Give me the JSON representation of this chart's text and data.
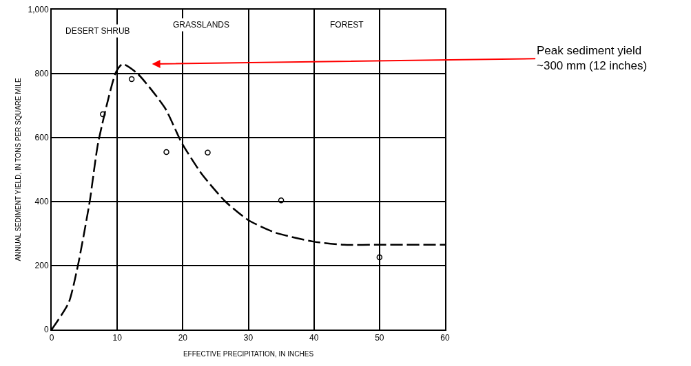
{
  "chart_data": {
    "type": "line",
    "xlabel": "EFFECTIVE PRECIPITATION, IN INCHES",
    "ylabel": "ANNUAL SEDIMENT YIELD, IN TONS PER SQUARE MILE",
    "xlim": [
      0,
      60
    ],
    "xticks": [
      0,
      10,
      20,
      30,
      40,
      50,
      60
    ],
    "ylim": [
      0,
      1000
    ],
    "yticks": [
      0,
      200,
      400,
      600,
      800,
      {
        "value": 1000,
        "label": "1,000"
      }
    ],
    "grid": true,
    "legend": false,
    "series": [
      {
        "color": "#000000",
        "line_style": "dashed",
        "marker": "none",
        "x": [
          0,
          2.6,
          4,
          5.8,
          7.1,
          9.8,
          10.8,
          13.1,
          17.3,
          19.8,
          22.9,
          26.5,
          30,
          34.1,
          39.9,
          44.6,
          50,
          60
        ],
        "values": [
          0,
          84,
          200,
          400,
          585,
          804,
          830,
          800,
          692,
          585,
          486,
          400,
          342,
          303,
          275,
          265,
          265,
          265
        ]
      },
      {
        "type": "scatter",
        "color": "#000000",
        "marker": "circle",
        "x": [
          7.8,
          12.2,
          17.5,
          23.8,
          35,
          50
        ],
        "values": [
          673,
          783,
          555,
          553,
          404,
          226
        ]
      }
    ],
    "annotations": [
      "DESERT SHRUB",
      "GRASSLANDS",
      "FOREST",
      "Peak sediment yield\n~300 mm (12 inches)"
    ]
  }
}
